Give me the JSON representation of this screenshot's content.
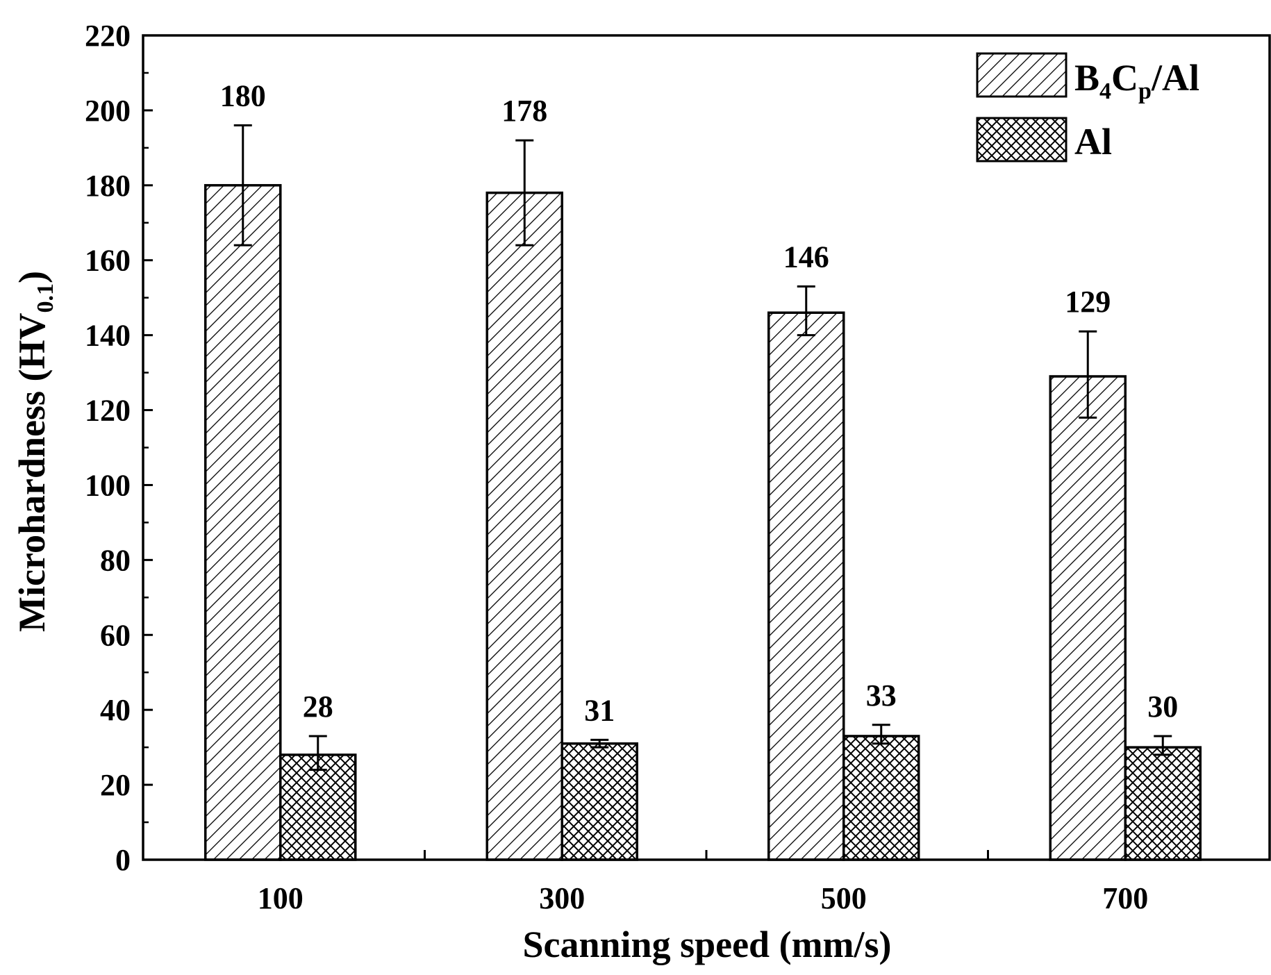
{
  "chart_data": {
    "type": "bar",
    "xlabel": "Scanning speed (mm/s)",
    "ylabel": "Microhardness (HV",
    "ylabel_sub": "0.1",
    "ylabel_close": ")",
    "categories": [
      "100",
      "300",
      "500",
      "700"
    ],
    "ylim": [
      0,
      220
    ],
    "yticks": [
      0,
      20,
      40,
      60,
      80,
      100,
      120,
      140,
      160,
      180,
      200,
      220
    ],
    "series": [
      {
        "name": "B4Cp/Al",
        "name_parts": [
          "B",
          "4",
          "C",
          "p",
          "/Al"
        ],
        "values": [
          180,
          178,
          146,
          129
        ],
        "labels": [
          "180",
          "178",
          "146",
          "129"
        ],
        "error_low": [
          164,
          164,
          140,
          118
        ],
        "error_high": [
          196,
          192,
          153,
          141
        ],
        "pattern": "diagonal-hatch"
      },
      {
        "name": "Al",
        "values": [
          28,
          31,
          33,
          30
        ],
        "labels": [
          "28",
          "31",
          "33",
          "30"
        ],
        "error_low": [
          24,
          30,
          31,
          28
        ],
        "error_high": [
          33,
          32,
          36,
          33
        ],
        "pattern": "cross-hatch"
      }
    ],
    "legend_position": "top-right",
    "grid": false,
    "colors": {
      "stroke": "#000000",
      "fill": "#ffffff"
    }
  }
}
